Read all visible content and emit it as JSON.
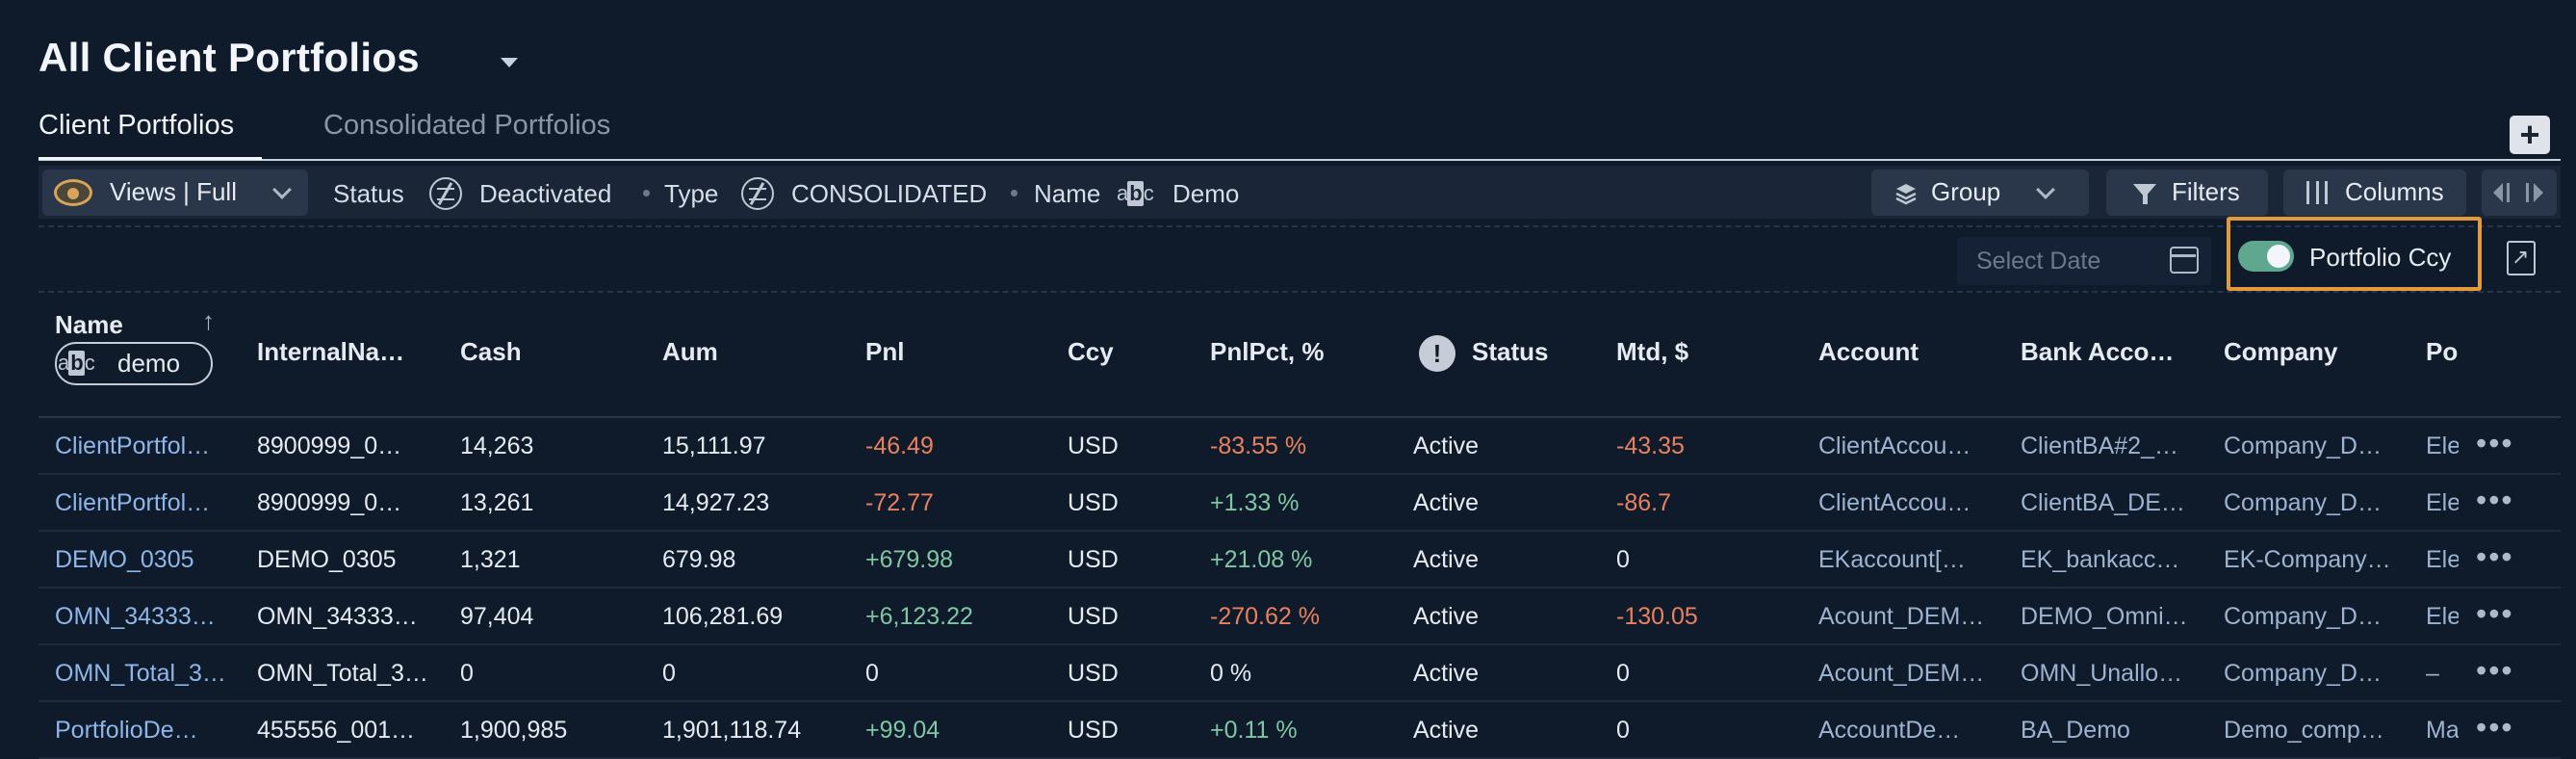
{
  "header": {
    "title": "All Client Portfolios"
  },
  "tabs": [
    {
      "label": "Client Portfolios",
      "active": true
    },
    {
      "label": "Consolidated Portfolios",
      "active": false
    }
  ],
  "filterbar": {
    "views_label": "Views | Full",
    "filters": [
      {
        "field": "Status",
        "value": "Deactivated",
        "icon": "not-equal-icon"
      },
      {
        "field": "Type",
        "value": "CONSOLIDATED",
        "icon": "not-equal-icon"
      },
      {
        "field": "Name",
        "value": "Demo",
        "icon": "abc-text-icon"
      }
    ],
    "group_label": "Group",
    "filters_label": "Filters",
    "columns_label": "Columns"
  },
  "toolbar2": {
    "date_placeholder": "Select Date",
    "ccy_toggle_label": "Portfolio Ccy",
    "ccy_toggle_on": true,
    "highlight_color": "#e39a3b"
  },
  "table": {
    "columns": [
      "Name",
      "InternalNa…",
      "Cash",
      "Aum",
      "Pnl",
      "Ccy",
      "PnlPct, %",
      "Status",
      "Mtd, $",
      "Account",
      "Bank Acco…",
      "Company",
      "Po"
    ],
    "name_filter_value": "demo",
    "rows": [
      {
        "name": "ClientPortfol…",
        "internal": "8900999_0…",
        "cash": "14,263",
        "aum": "15,111.97",
        "pnl": "-46.49",
        "ccy": "USD",
        "pnlpct": "-83.55 %",
        "status": "Active",
        "mtd": "-43.35",
        "account": "ClientAccou…",
        "bank": "ClientBA#2_…",
        "company": "Company_D…",
        "po": "Ele"
      },
      {
        "name": "ClientPortfol…",
        "internal": "8900999_0…",
        "cash": "13,261",
        "aum": "14,927.23",
        "pnl": "-72.77",
        "ccy": "USD",
        "pnlpct": "+1.33 %",
        "status": "Active",
        "mtd": "-86.7",
        "account": "ClientAccou…",
        "bank": "ClientBA_DE…",
        "company": "Company_D…",
        "po": "Ele"
      },
      {
        "name": "DEMO_0305",
        "internal": "DEMO_0305",
        "cash": "1,321",
        "aum": "679.98",
        "pnl": "+679.98",
        "ccy": "USD",
        "pnlpct": "+21.08 %",
        "status": "Active",
        "mtd": "0",
        "account": "EKaccount[…",
        "bank": "EK_bankacc…",
        "company": "EK-Company…",
        "po": "Ele"
      },
      {
        "name": "OMN_34333…",
        "internal": "OMN_34333…",
        "cash": "97,404",
        "aum": "106,281.69",
        "pnl": "+6,123.22",
        "ccy": "USD",
        "pnlpct": "-270.62 %",
        "status": "Active",
        "mtd": "-130.05",
        "account": "Acount_DEM…",
        "bank": "DEMO_Omni…",
        "company": "Company_D…",
        "po": "Ele"
      },
      {
        "name": "OMN_Total_3…",
        "internal": "OMN_Total_3…",
        "cash": "0",
        "aum": "0",
        "pnl": "0",
        "ccy": "USD",
        "pnlpct": "0 %",
        "status": "Active",
        "mtd": "0",
        "account": "Acount_DEM…",
        "bank": "OMN_Unallo…",
        "company": "Company_D…",
        "po": "–"
      },
      {
        "name": "PortfolioDe…",
        "internal": "455556_001…",
        "cash": "1,900,985",
        "aum": "1,901,118.74",
        "pnl": "+99.04",
        "ccy": "USD",
        "pnlpct": "+0.11 %",
        "status": "Active",
        "mtd": "0",
        "account": "AccountDe…",
        "bank": "BA_Demo",
        "company": "Demo_comp…",
        "po": "Ma"
      }
    ],
    "row_menu": "•••"
  }
}
